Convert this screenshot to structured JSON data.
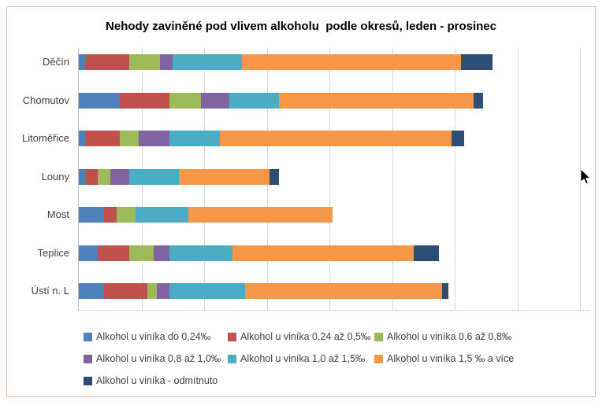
{
  "page": {
    "frame_border_color": "#e7bcae",
    "background_color": "#ffffff",
    "axis_line_color": "#bfbfbf",
    "gridline_color": "#d9d9d9",
    "label_text_color": "#404040"
  },
  "chart_data": {
    "type": "bar",
    "subtype": "horizontal-stacked",
    "title": "Nehody zaviněné pod vlivem alkoholu  podle okresů, leden - prosinec",
    "xlabel": "",
    "ylabel": "",
    "xlim": [
      0,
      163
    ],
    "gridline_interval": 20,
    "grid": true,
    "legend_position": "bottom",
    "categories": [
      "Děčín",
      "Chomutov",
      "Litoměřice",
      "Louny",
      "Most",
      "Teplice",
      "Ústí n. L"
    ],
    "series": [
      {
        "name": "Alkohol u viníka do 0,24‰",
        "color": "#4F81BD",
        "values": [
          2,
          13,
          2,
          2,
          8,
          6,
          8
        ]
      },
      {
        "name": "Alkohol u viníka 0,24 až 0,5‰",
        "color": "#C0504D",
        "values": [
          14,
          16,
          11,
          4,
          4,
          10,
          14
        ]
      },
      {
        "name": "Alkohol u viníka 0,6 až 0,8‰",
        "color": "#9BBB59",
        "values": [
          10,
          10,
          6,
          4,
          6,
          8,
          3
        ]
      },
      {
        "name": "Alkohol u viníka 0,8 až 1,0‰",
        "color": "#8064A2",
        "values": [
          4,
          9,
          10,
          6,
          0,
          5,
          4
        ]
      },
      {
        "name": "Alkohol u viníka 1,0 až 1,5‰",
        "color": "#4BACC6",
        "values": [
          22,
          16,
          16,
          16,
          17,
          20,
          24
        ]
      },
      {
        "name": "Alkohol u viníka 1,5 ‰ a více",
        "color": "#F79646",
        "values": [
          70,
          62,
          74,
          29,
          46,
          58,
          63
        ]
      },
      {
        "name": "Alkohol u viníka - odmítnuto",
        "color": "#2C4D75",
        "values": [
          10,
          3,
          4,
          3,
          0,
          8,
          2
        ]
      }
    ],
    "totals": [
      132,
      129,
      123,
      64,
      81,
      115,
      118
    ]
  },
  "legend": {
    "rows": [
      3,
      3,
      1
    ]
  }
}
